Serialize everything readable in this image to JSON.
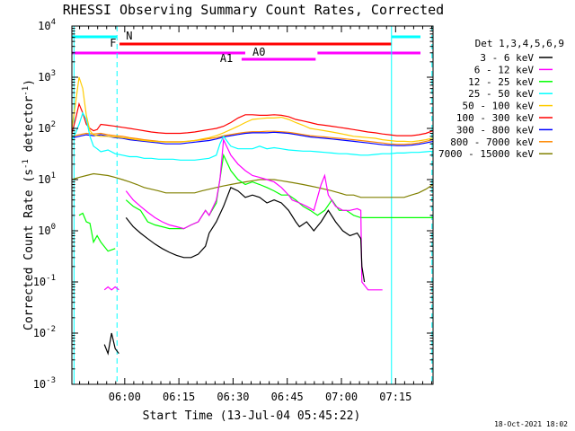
{
  "chart_data": {
    "type": "line",
    "title": "RHESSI Observing Summary Count Rates, Corrected",
    "xlabel": "Start Time (13-Jul-04 05:45:22)",
    "ylabel_main": "Corrected Count Rate (s",
    "ylabel_unit": "detector",
    "ylabel_exp": "-1",
    "y_scale": "log",
    "ylim": [
      0.001,
      10000
    ],
    "xlim_minutes": [
      0,
      100
    ],
    "x_ticks": [
      "06:00",
      "06:15",
      "06:30",
      "06:45",
      "07:00",
      "07:15"
    ],
    "y_ticks": [
      {
        "base": "10",
        "exp": "-3",
        "value": 0.001
      },
      {
        "base": "10",
        "exp": "-2",
        "value": 0.01
      },
      {
        "base": "10",
        "exp": "-1",
        "value": 0.1
      },
      {
        "base": "10",
        "exp": "0",
        "value": 1
      },
      {
        "base": "10",
        "exp": "1",
        "value": 10
      },
      {
        "base": "10",
        "exp": "2",
        "value": 100
      },
      {
        "base": "10",
        "exp": "3",
        "value": 1000
      },
      {
        "base": "10",
        "exp": "4",
        "value": 10000
      }
    ],
    "legend_title": "Det 1,3,4,5,6,9",
    "legend_position": "right",
    "series": [
      {
        "name": "3 - 6 keV",
        "color": "#000000",
        "x": [
          9,
          10,
          11,
          12,
          13,
          14,
          15,
          17,
          19,
          21,
          23,
          25,
          27,
          29,
          31,
          33,
          35,
          37,
          38,
          40,
          42,
          44,
          46,
          48,
          50,
          52,
          54,
          56,
          58,
          60,
          62,
          63,
          65,
          67,
          69,
          71,
          73,
          75,
          77,
          79,
          80,
          80.3,
          81
        ],
        "y": [
          0.006,
          0.004,
          0.01,
          0.005,
          0.004,
          null,
          1.8,
          1.2,
          0.9,
          0.7,
          0.55,
          0.45,
          0.38,
          0.33,
          0.3,
          0.3,
          0.35,
          0.5,
          0.9,
          1.5,
          3,
          7,
          6,
          4.5,
          5,
          4.5,
          3.5,
          4,
          3.5,
          2.5,
          1.5,
          1.2,
          1.5,
          1,
          1.5,
          2.5,
          1.5,
          1,
          0.8,
          0.9,
          0.7,
          0.2,
          0.1
        ]
      },
      {
        "name": "6 - 12 keV",
        "color": "#ff00ff",
        "x": [
          9,
          10,
          11,
          12,
          13,
          14,
          15,
          17,
          19,
          21,
          23,
          25,
          27,
          29,
          31,
          33,
          35,
          37,
          38,
          40,
          41,
          42,
          44,
          46,
          48,
          50,
          52,
          54,
          56,
          58,
          60,
          61,
          63,
          65,
          67,
          69,
          70,
          71,
          73,
          75,
          77,
          79,
          80,
          80.3,
          82,
          84,
          86
        ],
        "y": [
          0.07,
          0.08,
          0.07,
          0.08,
          0.07,
          null,
          6,
          4,
          3,
          2.3,
          1.8,
          1.5,
          1.3,
          1.2,
          1.1,
          1.3,
          1.5,
          2.5,
          2,
          4,
          10,
          60,
          30,
          20,
          15,
          12,
          11,
          10,
          9,
          7,
          5,
          4,
          3.5,
          3,
          2.5,
          8,
          12,
          5,
          3,
          2.5,
          2.5,
          2.7,
          2.5,
          0.1,
          0.07,
          0.07,
          0.07
        ]
      },
      {
        "name": "12 - 25 keV",
        "color": "#00ff00",
        "x": [
          2,
          3,
          4,
          5,
          6,
          7,
          8,
          10,
          12,
          14,
          15,
          17,
          19,
          21,
          23,
          25,
          27,
          29,
          31,
          33,
          35,
          37,
          38,
          40,
          42,
          44,
          46,
          48,
          50,
          52,
          54,
          56,
          58,
          60,
          62,
          64,
          66,
          68,
          70,
          72,
          74,
          76,
          78,
          80,
          82,
          84,
          86,
          88,
          90,
          92,
          94,
          96,
          98,
          100
        ],
        "y": [
          2,
          2.2,
          1.5,
          1.4,
          0.6,
          0.8,
          0.6,
          0.4,
          0.45,
          null,
          4,
          3,
          2.5,
          1.5,
          1.3,
          1.2,
          1.1,
          1.1,
          1.1,
          1.3,
          1.5,
          2.5,
          2,
          3.5,
          30,
          15,
          10,
          8,
          9,
          8,
          7,
          6,
          5,
          5,
          4,
          3,
          2.5,
          2,
          2.5,
          4,
          2.5,
          2.5,
          2,
          1.8,
          1.8,
          1.8,
          1.8,
          1.8,
          1.8,
          1.8,
          1.8,
          1.8,
          1.8,
          1.8
        ]
      },
      {
        "name": "25 - 50 keV",
        "color": "#00ffff",
        "x": [
          0,
          1,
          2,
          3,
          4,
          5,
          6,
          7,
          8,
          10,
          12,
          14,
          16,
          18,
          20,
          22,
          24,
          26,
          28,
          30,
          32,
          34,
          36,
          38,
          40,
          41,
          42,
          44,
          46,
          48,
          50,
          52,
          54,
          56,
          58,
          60,
          62,
          64,
          66,
          68,
          70,
          72,
          74,
          76,
          78,
          80,
          82,
          84,
          86,
          88,
          90,
          92,
          94,
          96,
          98,
          100
        ],
        "y": [
          60,
          80,
          120,
          200,
          150,
          70,
          45,
          40,
          35,
          38,
          32,
          30,
          28,
          28,
          26,
          26,
          25,
          25,
          25,
          24,
          24,
          24,
          25,
          26,
          30,
          50,
          70,
          45,
          40,
          40,
          40,
          45,
          40,
          42,
          40,
          38,
          37,
          36,
          36,
          35,
          34,
          33,
          32,
          32,
          31,
          30,
          30,
          31,
          32,
          32,
          33,
          33,
          34,
          34,
          35,
          36
        ]
      },
      {
        "name": "50 - 100 keV",
        "color": "#ffcc00",
        "x": [
          0,
          1,
          2,
          3,
          4,
          5,
          6,
          7,
          8,
          10,
          12,
          14,
          16,
          18,
          20,
          22,
          24,
          26,
          28,
          30,
          32,
          34,
          36,
          38,
          40,
          42,
          44,
          46,
          48,
          50,
          52,
          54,
          56,
          58,
          60,
          62,
          64,
          66,
          68,
          70,
          72,
          74,
          76,
          78,
          80,
          82,
          84,
          86,
          88,
          90,
          92,
          94,
          96,
          98,
          100
        ],
        "y": [
          100,
          300,
          1000,
          600,
          180,
          90,
          75,
          72,
          70,
          70,
          68,
          66,
          63,
          60,
          58,
          56,
          55,
          54,
          54,
          54,
          56,
          58,
          62,
          66,
          72,
          82,
          95,
          110,
          130,
          150,
          155,
          160,
          160,
          165,
          150,
          130,
          115,
          100,
          95,
          90,
          85,
          80,
          75,
          70,
          68,
          66,
          64,
          60,
          58,
          56,
          56,
          55,
          57,
          60,
          65
        ]
      },
      {
        "name": "100 - 300 keV",
        "color": "#ff0000",
        "x": [
          0,
          1,
          2,
          3,
          4,
          5,
          6,
          7,
          8,
          10,
          12,
          14,
          16,
          18,
          20,
          22,
          24,
          26,
          28,
          30,
          32,
          34,
          36,
          38,
          40,
          42,
          44,
          46,
          48,
          50,
          52,
          54,
          56,
          58,
          60,
          62,
          64,
          66,
          68,
          70,
          72,
          74,
          76,
          78,
          80,
          82,
          84,
          86,
          88,
          90,
          92,
          94,
          96,
          98,
          100
        ],
        "y": [
          80,
          150,
          300,
          200,
          120,
          100,
          90,
          95,
          120,
          115,
          110,
          105,
          100,
          95,
          90,
          85,
          82,
          80,
          80,
          80,
          82,
          85,
          90,
          95,
          100,
          110,
          130,
          160,
          185,
          185,
          180,
          180,
          185,
          180,
          170,
          150,
          140,
          130,
          120,
          115,
          110,
          105,
          100,
          95,
          90,
          85,
          82,
          78,
          75,
          72,
          72,
          72,
          75,
          80,
          90
        ]
      },
      {
        "name": "300 - 800 keV",
        "color": "#0000ff",
        "x": [
          0,
          2,
          4,
          6,
          8,
          10,
          12,
          14,
          16,
          18,
          20,
          22,
          24,
          26,
          28,
          30,
          32,
          34,
          36,
          38,
          40,
          42,
          44,
          46,
          48,
          50,
          52,
          54,
          56,
          58,
          60,
          62,
          64,
          66,
          68,
          70,
          72,
          74,
          76,
          78,
          80,
          82,
          84,
          86,
          88,
          90,
          92,
          94,
          96,
          98,
          100
        ],
        "y": [
          65,
          70,
          75,
          72,
          75,
          70,
          66,
          64,
          60,
          58,
          56,
          54,
          52,
          50,
          50,
          50,
          52,
          54,
          56,
          58,
          62,
          68,
          72,
          76,
          80,
          82,
          82,
          82,
          84,
          82,
          80,
          76,
          72,
          68,
          66,
          64,
          62,
          60,
          58,
          56,
          54,
          52,
          50,
          48,
          47,
          46,
          46,
          47,
          49,
          52,
          56
        ]
      },
      {
        "name": "800 - 7000 keV",
        "color": "#ff8800",
        "x": [
          0,
          2,
          4,
          6,
          8,
          10,
          12,
          14,
          16,
          18,
          20,
          22,
          24,
          26,
          28,
          30,
          32,
          34,
          36,
          38,
          40,
          42,
          44,
          46,
          48,
          50,
          52,
          54,
          56,
          58,
          60,
          62,
          64,
          66,
          68,
          70,
          72,
          74,
          76,
          78,
          80,
          82,
          84,
          86,
          88,
          90,
          92,
          94,
          96,
          98,
          100
        ],
        "y": [
          70,
          75,
          80,
          78,
          80,
          75,
          72,
          70,
          66,
          63,
          60,
          58,
          56,
          55,
          55,
          55,
          56,
          58,
          60,
          63,
          66,
          72,
          76,
          80,
          84,
          86,
          86,
          88,
          88,
          86,
          84,
          80,
          76,
          72,
          70,
          68,
          66,
          64,
          62,
          60,
          58,
          56,
          54,
          52,
          50,
          49,
          49,
          50,
          52,
          56,
          60
        ]
      },
      {
        "name": "7000 - 15000 keV",
        "color": "#808000",
        "x": [
          0,
          2,
          4,
          6,
          8,
          10,
          12,
          14,
          16,
          18,
          20,
          22,
          24,
          26,
          28,
          30,
          32,
          34,
          36,
          38,
          40,
          42,
          44,
          46,
          48,
          50,
          52,
          54,
          56,
          58,
          60,
          62,
          64,
          66,
          68,
          70,
          72,
          74,
          76,
          78,
          80,
          82,
          84,
          86,
          88,
          90,
          92,
          94,
          96,
          98,
          100
        ],
        "y": [
          10,
          11,
          12,
          13,
          12.5,
          12,
          11,
          10,
          9,
          8,
          7,
          6.5,
          6,
          5.5,
          5.5,
          5.5,
          5.5,
          5.5,
          6,
          6.5,
          7,
          7.5,
          8,
          8.5,
          9,
          9.5,
          10,
          10,
          10,
          9.5,
          9,
          8.5,
          8,
          7.5,
          7,
          6.5,
          6,
          5.5,
          5,
          5,
          4.5,
          4.5,
          4.5,
          4.5,
          4.5,
          4.5,
          4.5,
          5,
          5.5,
          6.5,
          8
        ]
      }
    ],
    "annotations": [
      {
        "label": "N",
        "color": "#00ffff"
      },
      {
        "label": "F",
        "color": "#ff0000"
      },
      {
        "label": "A0",
        "color": "#ff00ff"
      },
      {
        "label": "A1",
        "color": "#ff00ff"
      }
    ],
    "footer_date": "18-Oct-2021 18:02"
  }
}
